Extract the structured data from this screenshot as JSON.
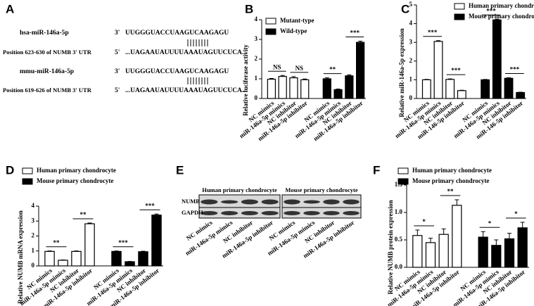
{
  "chart_data": [
    {
      "type": "bar",
      "panel": "B",
      "ylabel": "Relative luciferase activity",
      "categories": [
        "NC mimics",
        "miR-146a-5p mimics",
        "NC inhibitor",
        "miR-146a-5p inhibitor",
        "NC mimics",
        "miR-146a-5p mimics",
        "NC inhibitor",
        "miR-146a-5p inhibitor"
      ],
      "series": [
        {
          "name": "Mutant-type",
          "color": "#ffffff",
          "values": [
            0.98,
            1.12,
            1.05,
            0.95,
            null,
            null,
            null,
            null
          ],
          "errors": [
            0.04,
            0.05,
            0.06,
            0.04,
            null,
            null,
            null,
            null
          ]
        },
        {
          "name": "Wild-type",
          "color": "#000000",
          "values": [
            null,
            null,
            null,
            null,
            1.0,
            0.45,
            1.15,
            2.85
          ],
          "errors": [
            null,
            null,
            null,
            null,
            0.05,
            0.03,
            0.05,
            0.06
          ]
        }
      ],
      "ylim": [
        0,
        4
      ],
      "yticks": [
        0,
        1,
        2,
        3,
        4
      ],
      "annotations": [
        "NS",
        "NS",
        "**",
        "***"
      ]
    },
    {
      "type": "bar",
      "panel": "C",
      "ylabel": "Relative miR-146a-5p expression",
      "categories": [
        "NC mimics",
        "miR-146a-5p mimics",
        "NC inhibitor",
        "miR-146-5p inhibitor",
        "NC mimics",
        "miR-146a-5p mimics",
        "NC inhibitor",
        "miR-146-5p inhibitor"
      ],
      "series": [
        {
          "name": "Human primary chondrocyte",
          "color": "#ffffff",
          "values": [
            1.0,
            3.05,
            1.02,
            0.42,
            null,
            null,
            null,
            null
          ],
          "errors": [
            0.02,
            0.04,
            0.03,
            0.02,
            null,
            null,
            null,
            null
          ]
        },
        {
          "name": "Mouse primary chondrocyte",
          "color": "#000000",
          "values": [
            null,
            null,
            null,
            null,
            1.0,
            4.2,
            1.08,
            0.32
          ],
          "errors": [
            null,
            null,
            null,
            null,
            0.02,
            0.04,
            0.03,
            0.02
          ]
        }
      ],
      "ylim": [
        0,
        5
      ],
      "yticks": [
        0,
        1,
        2,
        3,
        4,
        5
      ],
      "annotations": [
        "***",
        "***",
        "***",
        "***"
      ]
    },
    {
      "type": "bar",
      "panel": "D",
      "ylabel": "Relative NUMB mRNA expression",
      "categories": [
        "NC mimics",
        "miR-146a-5p mimics",
        "NC inhibitor",
        "miR-146a-5p inhibitor",
        "NC mimics",
        "miR-146a-5p mimics",
        "NC inhibitor",
        "miR-146a-5p inhibitor"
      ],
      "series": [
        {
          "name": "Human primary chondrocyte",
          "color": "#ffffff",
          "values": [
            0.97,
            0.38,
            0.97,
            2.82,
            null,
            null,
            null,
            null
          ],
          "errors": [
            0.03,
            0.02,
            0.03,
            0.05,
            null,
            null,
            null,
            null
          ]
        },
        {
          "name": "Mouse primary chondrocyte",
          "color": "#000000",
          "values": [
            null,
            null,
            null,
            null,
            0.97,
            0.28,
            0.95,
            3.4
          ],
          "errors": [
            null,
            null,
            null,
            null,
            0.03,
            0.02,
            0.03,
            0.07
          ]
        }
      ],
      "ylim": [
        0,
        4
      ],
      "yticks": [
        0,
        1,
        2,
        3,
        4
      ],
      "annotations": [
        "**",
        "**",
        "***",
        "***"
      ]
    },
    {
      "type": "bar",
      "panel": "F",
      "ylabel": "Relative NUMB protein expression",
      "categories": [
        "NC mimics",
        "miR-146a-5p mimics",
        "NC inhibitor",
        "miR-146a-5p inhibitor",
        "NC mimics",
        "miR-146a-5p mimics",
        "NC inhibitor",
        "miR-146a-5p inhibitor"
      ],
      "series": [
        {
          "name": "Human primary chondrocyte",
          "color": "#ffffff",
          "values": [
            0.58,
            0.45,
            0.6,
            1.13,
            null,
            null,
            null,
            null
          ],
          "errors": [
            0.1,
            0.08,
            0.1,
            0.1,
            null,
            null,
            null,
            null
          ]
        },
        {
          "name": "Mouse primary chondrocyte",
          "color": "#000000",
          "values": [
            null,
            null,
            null,
            null,
            0.55,
            0.4,
            0.52,
            0.72
          ],
          "errors": [
            null,
            null,
            null,
            null,
            0.1,
            0.1,
            0.1,
            0.1
          ]
        }
      ],
      "ylim": [
        0,
        1.5
      ],
      "yticks": [
        {
          "value": 0,
          "label": "0.0"
        },
        {
          "value": 0.5,
          "label": "0.5"
        },
        {
          "value": 1,
          "label": "1.0"
        },
        {
          "value": 1.5,
          "label": "1.5"
        }
      ],
      "annotations": [
        "*",
        "**",
        "*",
        "*"
      ]
    }
  ],
  "panel_a": {
    "panel": "A",
    "rows": [
      {
        "mirna": "hsa-miR-146a-5p",
        "end3": "3'",
        "mirna_seq": "UUGGGUACCUAAGUCAAGAGU",
        "position": "Position 623-630  of NUMB 3' UTR",
        "end5": "5'",
        "target_seq": "...UAGAAUAUUUUAAAUAGUUCUCA..."
      },
      {
        "mirna": "mmu-miR-146a-5p",
        "end3": "3'",
        "mirna_seq": "UUGGGUACCUAAGUCAAGAGU",
        "position": "Position 619-626 of NUMB 3' UTR",
        "end5": "5'",
        "target_seq": "...UAGAAUAUUUUAAAUAGUUCUCA..."
      }
    ]
  },
  "panel_e": {
    "panel": "E",
    "groups": [
      "Human primary chondrocyte",
      "Mouse primary chondrocyte"
    ],
    "proteins": [
      "NUMB",
      "GAPDH"
    ],
    "lanes": [
      "NC mimics",
      "miR-146a-5p mimics",
      "NC inhibitor",
      "miR-146a-5p inhibitor",
      "NC mimics",
      "miR-146a-5p mimics",
      "NC inhibitor",
      "miR-146a-5p inhibitor"
    ]
  }
}
